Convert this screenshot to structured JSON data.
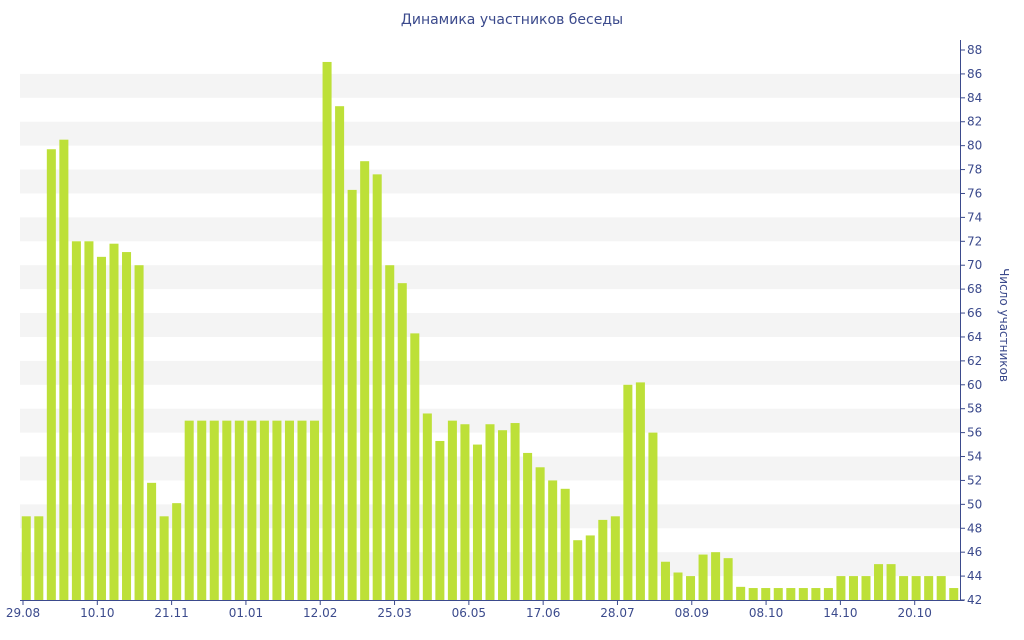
{
  "chart_data": {
    "type": "bar",
    "title": "Динамика участников беседы",
    "ylabel": "Число участников",
    "xlabel": "",
    "ylim": [
      42,
      88
    ],
    "y_ticks": [
      42,
      44,
      46,
      48,
      50,
      52,
      54,
      56,
      58,
      60,
      62,
      64,
      66,
      68,
      70,
      72,
      74,
      76,
      78,
      80,
      82,
      84,
      86,
      88
    ],
    "x_tick_labels": [
      "29.08",
      "10.10",
      "21.11",
      "01.01",
      "12.02",
      "25.03",
      "06.05",
      "17.06",
      "28.07",
      "08.09",
      "08.10",
      "14.10",
      "20.10"
    ],
    "bar_color": "#bde038",
    "series": [
      {
        "values": [
          49,
          49,
          79.7,
          80.5,
          72,
          72,
          70.7,
          71.8,
          71.1,
          70,
          51.8,
          49,
          50.1,
          57,
          57,
          57,
          57,
          57,
          57,
          57,
          57,
          57,
          57,
          57,
          87,
          83.3,
          76.3,
          78.7,
          77.6,
          70,
          68.5,
          64.3,
          57.6,
          55.3,
          57,
          56.7,
          55,
          56.7,
          56.2,
          56.8,
          54.3,
          53.1,
          52,
          51.3,
          47,
          47.4,
          48.7,
          49,
          60,
          60.2,
          56,
          45.2,
          44.3,
          44,
          45.8,
          46,
          45.5,
          43.1,
          43,
          43,
          43,
          43,
          43,
          43,
          43,
          44,
          44,
          44,
          45,
          45,
          44,
          44,
          44,
          44,
          43
        ]
      }
    ]
  }
}
